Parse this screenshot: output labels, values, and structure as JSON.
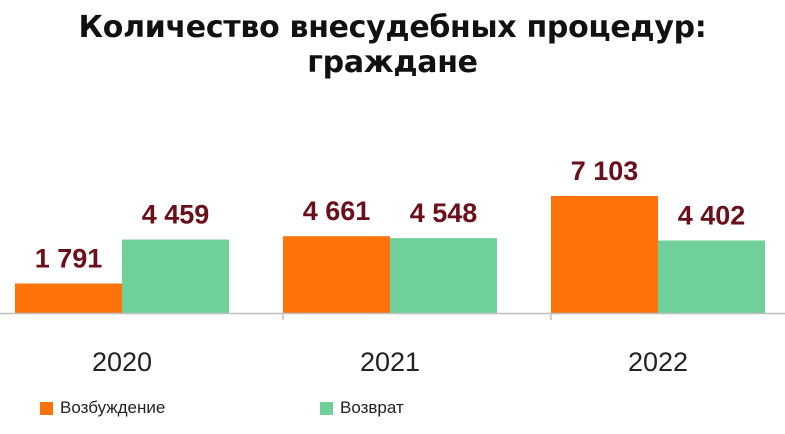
{
  "chart_data": {
    "type": "bar",
    "title": "Количество внесудебных процедур: граждане",
    "categories": [
      "2020",
      "2021",
      "2022"
    ],
    "series": [
      {
        "name": "Возбуждение",
        "color": "#FF7109",
        "values": [
          1791,
          4661,
          7103
        ],
        "labels": [
          "1 791",
          "4 661",
          "7 103"
        ]
      },
      {
        "name": "Возврат",
        "color": "#70D09A",
        "values": [
          4459,
          4548,
          4402
        ],
        "labels": [
          "4 459",
          "4 548",
          "4 402"
        ]
      }
    ],
    "label_color": "#6B0F1A",
    "axis_color": "#BFBFBF",
    "grid": false,
    "legend_position": "bottom-left",
    "xlabel": "",
    "ylabel": ""
  }
}
